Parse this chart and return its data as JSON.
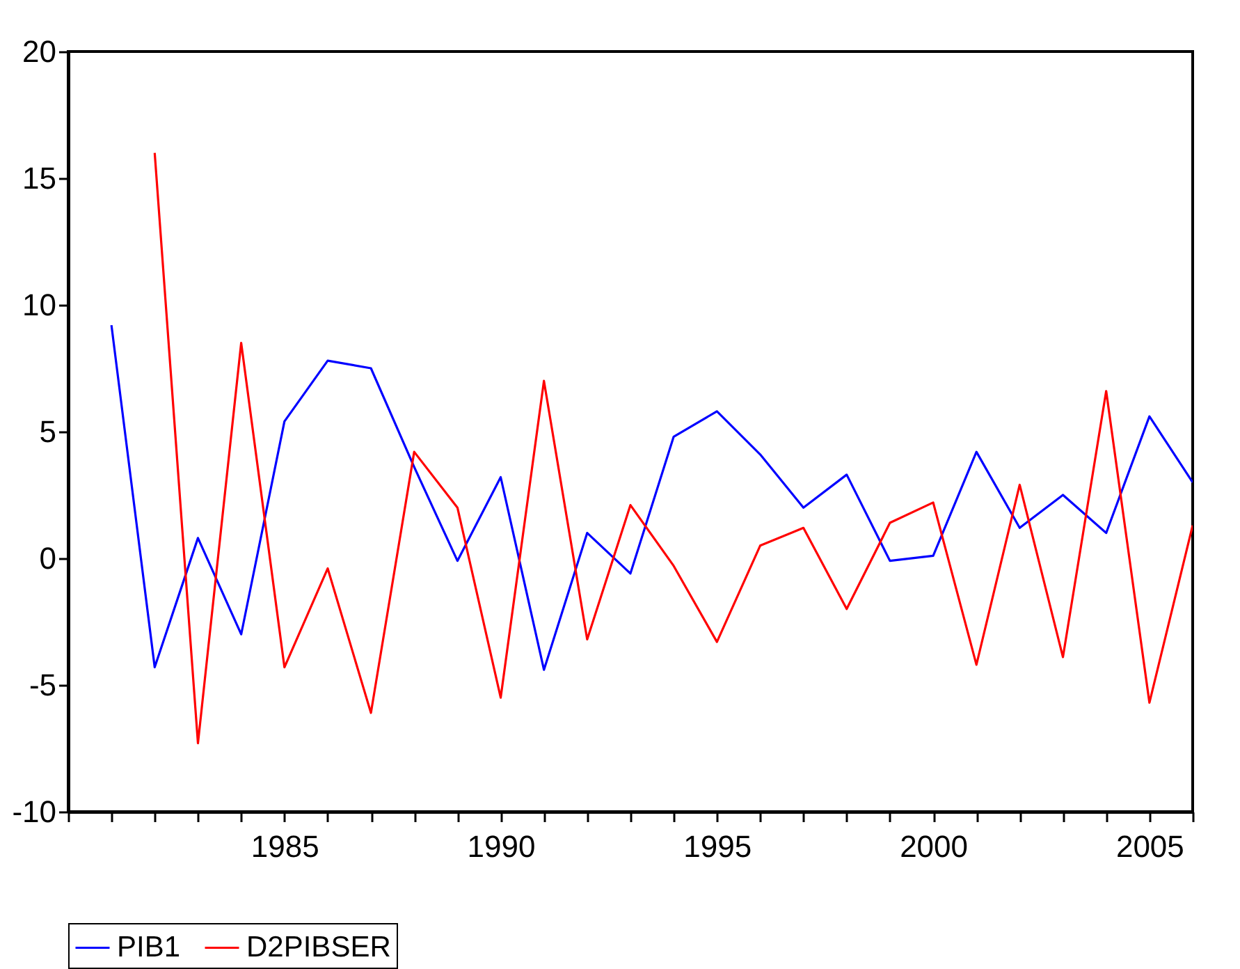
{
  "chart_data": {
    "type": "line",
    "x": [
      1981,
      1982,
      1983,
      1984,
      1985,
      1986,
      1987,
      1988,
      1989,
      1990,
      1991,
      1992,
      1993,
      1994,
      1995,
      1996,
      1997,
      1998,
      1999,
      2000,
      2001,
      2002,
      2003,
      2004,
      2005,
      2006
    ],
    "series": [
      {
        "name": "PIB1",
        "color": "#0000ff",
        "values": [
          9.2,
          -4.3,
          0.8,
          -3.0,
          5.4,
          7.8,
          7.5,
          3.6,
          -0.1,
          3.2,
          -4.4,
          1.0,
          -0.6,
          4.8,
          5.8,
          4.1,
          2.0,
          3.3,
          -0.1,
          0.1,
          4.2,
          1.2,
          2.5,
          1.0,
          5.6,
          3.0
        ]
      },
      {
        "name": "D2PIBSER",
        "color": "#ff0000",
        "values": [
          null,
          16.0,
          -7.3,
          8.5,
          -4.3,
          -0.4,
          -6.1,
          4.2,
          2.0,
          -5.5,
          7.0,
          -3.2,
          2.1,
          -0.3,
          -3.3,
          0.5,
          1.2,
          -2.0,
          1.4,
          2.2,
          -4.2,
          2.9,
          -3.9,
          6.6,
          -5.7,
          1.3
        ]
      }
    ],
    "xlim": [
      1980,
      2006
    ],
    "xticks": [
      {
        "value": 1980,
        "label": null
      },
      {
        "value": 1981,
        "label": null
      },
      {
        "value": 1982,
        "label": null
      },
      {
        "value": 1983,
        "label": null
      },
      {
        "value": 1984,
        "label": null
      },
      1985,
      {
        "value": 1986,
        "label": null
      },
      {
        "value": 1987,
        "label": null
      },
      {
        "value": 1988,
        "label": null
      },
      {
        "value": 1989,
        "label": null
      },
      1990,
      {
        "value": 1991,
        "label": null
      },
      {
        "value": 1992,
        "label": null
      },
      {
        "value": 1993,
        "label": null
      },
      {
        "value": 1994,
        "label": null
      },
      1995,
      {
        "value": 1996,
        "label": null
      },
      {
        "value": 1997,
        "label": null
      },
      {
        "value": 1998,
        "label": null
      },
      {
        "value": 1999,
        "label": null
      },
      2000,
      {
        "value": 2001,
        "label": null
      },
      {
        "value": 2002,
        "label": null
      },
      {
        "value": 2003,
        "label": null
      },
      {
        "value": 2004,
        "label": null
      },
      2005,
      {
        "value": 2006,
        "label": null
      }
    ],
    "ylim": [
      -10,
      20
    ],
    "yticks": [
      -10,
      -5,
      0,
      5,
      10,
      15,
      20
    ],
    "legend": "bottom",
    "grid": false,
    "line_style": "solid"
  }
}
